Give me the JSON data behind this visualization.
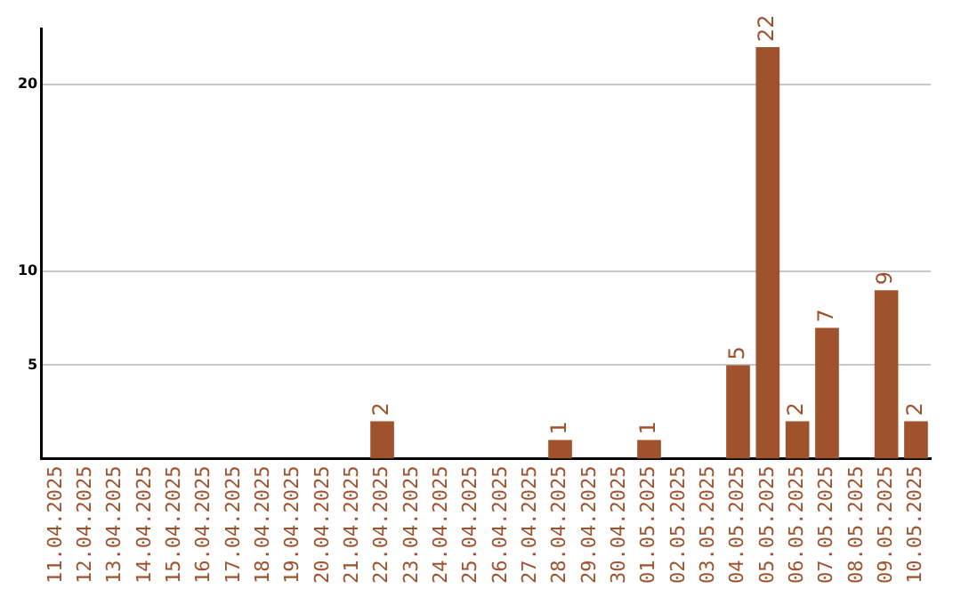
{
  "chart_data": {
    "type": "bar",
    "categories": [
      "11.04.2025",
      "12.04.2025",
      "13.04.2025",
      "14.04.2025",
      "15.04.2025",
      "16.04.2025",
      "17.04.2025",
      "18.04.2025",
      "19.04.2025",
      "20.04.2025",
      "21.04.2025",
      "22.04.2025",
      "23.04.2025",
      "24.04.2025",
      "25.04.2025",
      "26.04.2025",
      "27.04.2025",
      "28.04.2025",
      "29.04.2025",
      "30.04.2025",
      "01.05.2025",
      "02.05.2025",
      "03.05.2025",
      "04.05.2025",
      "05.05.2025",
      "06.05.2025",
      "07.05.2025",
      "08.05.2025",
      "09.05.2025",
      "10.05.2025"
    ],
    "values": [
      0,
      0,
      0,
      0,
      0,
      0,
      0,
      0,
      0,
      0,
      0,
      2,
      0,
      0,
      0,
      0,
      0,
      1,
      0,
      0,
      1,
      0,
      0,
      5,
      22,
      2,
      7,
      0,
      9,
      2
    ],
    "value_labels": [
      null,
      null,
      null,
      null,
      null,
      null,
      null,
      null,
      null,
      null,
      null,
      "2",
      null,
      null,
      null,
      null,
      null,
      "1",
      null,
      null,
      "1",
      null,
      null,
      "5",
      "22",
      "2",
      "7",
      null,
      "9",
      "2"
    ],
    "color": "#a0522d",
    "ylim": [
      0,
      23
    ],
    "yticks": [
      5,
      10,
      20
    ],
    "grid": "y",
    "legend": false
  }
}
